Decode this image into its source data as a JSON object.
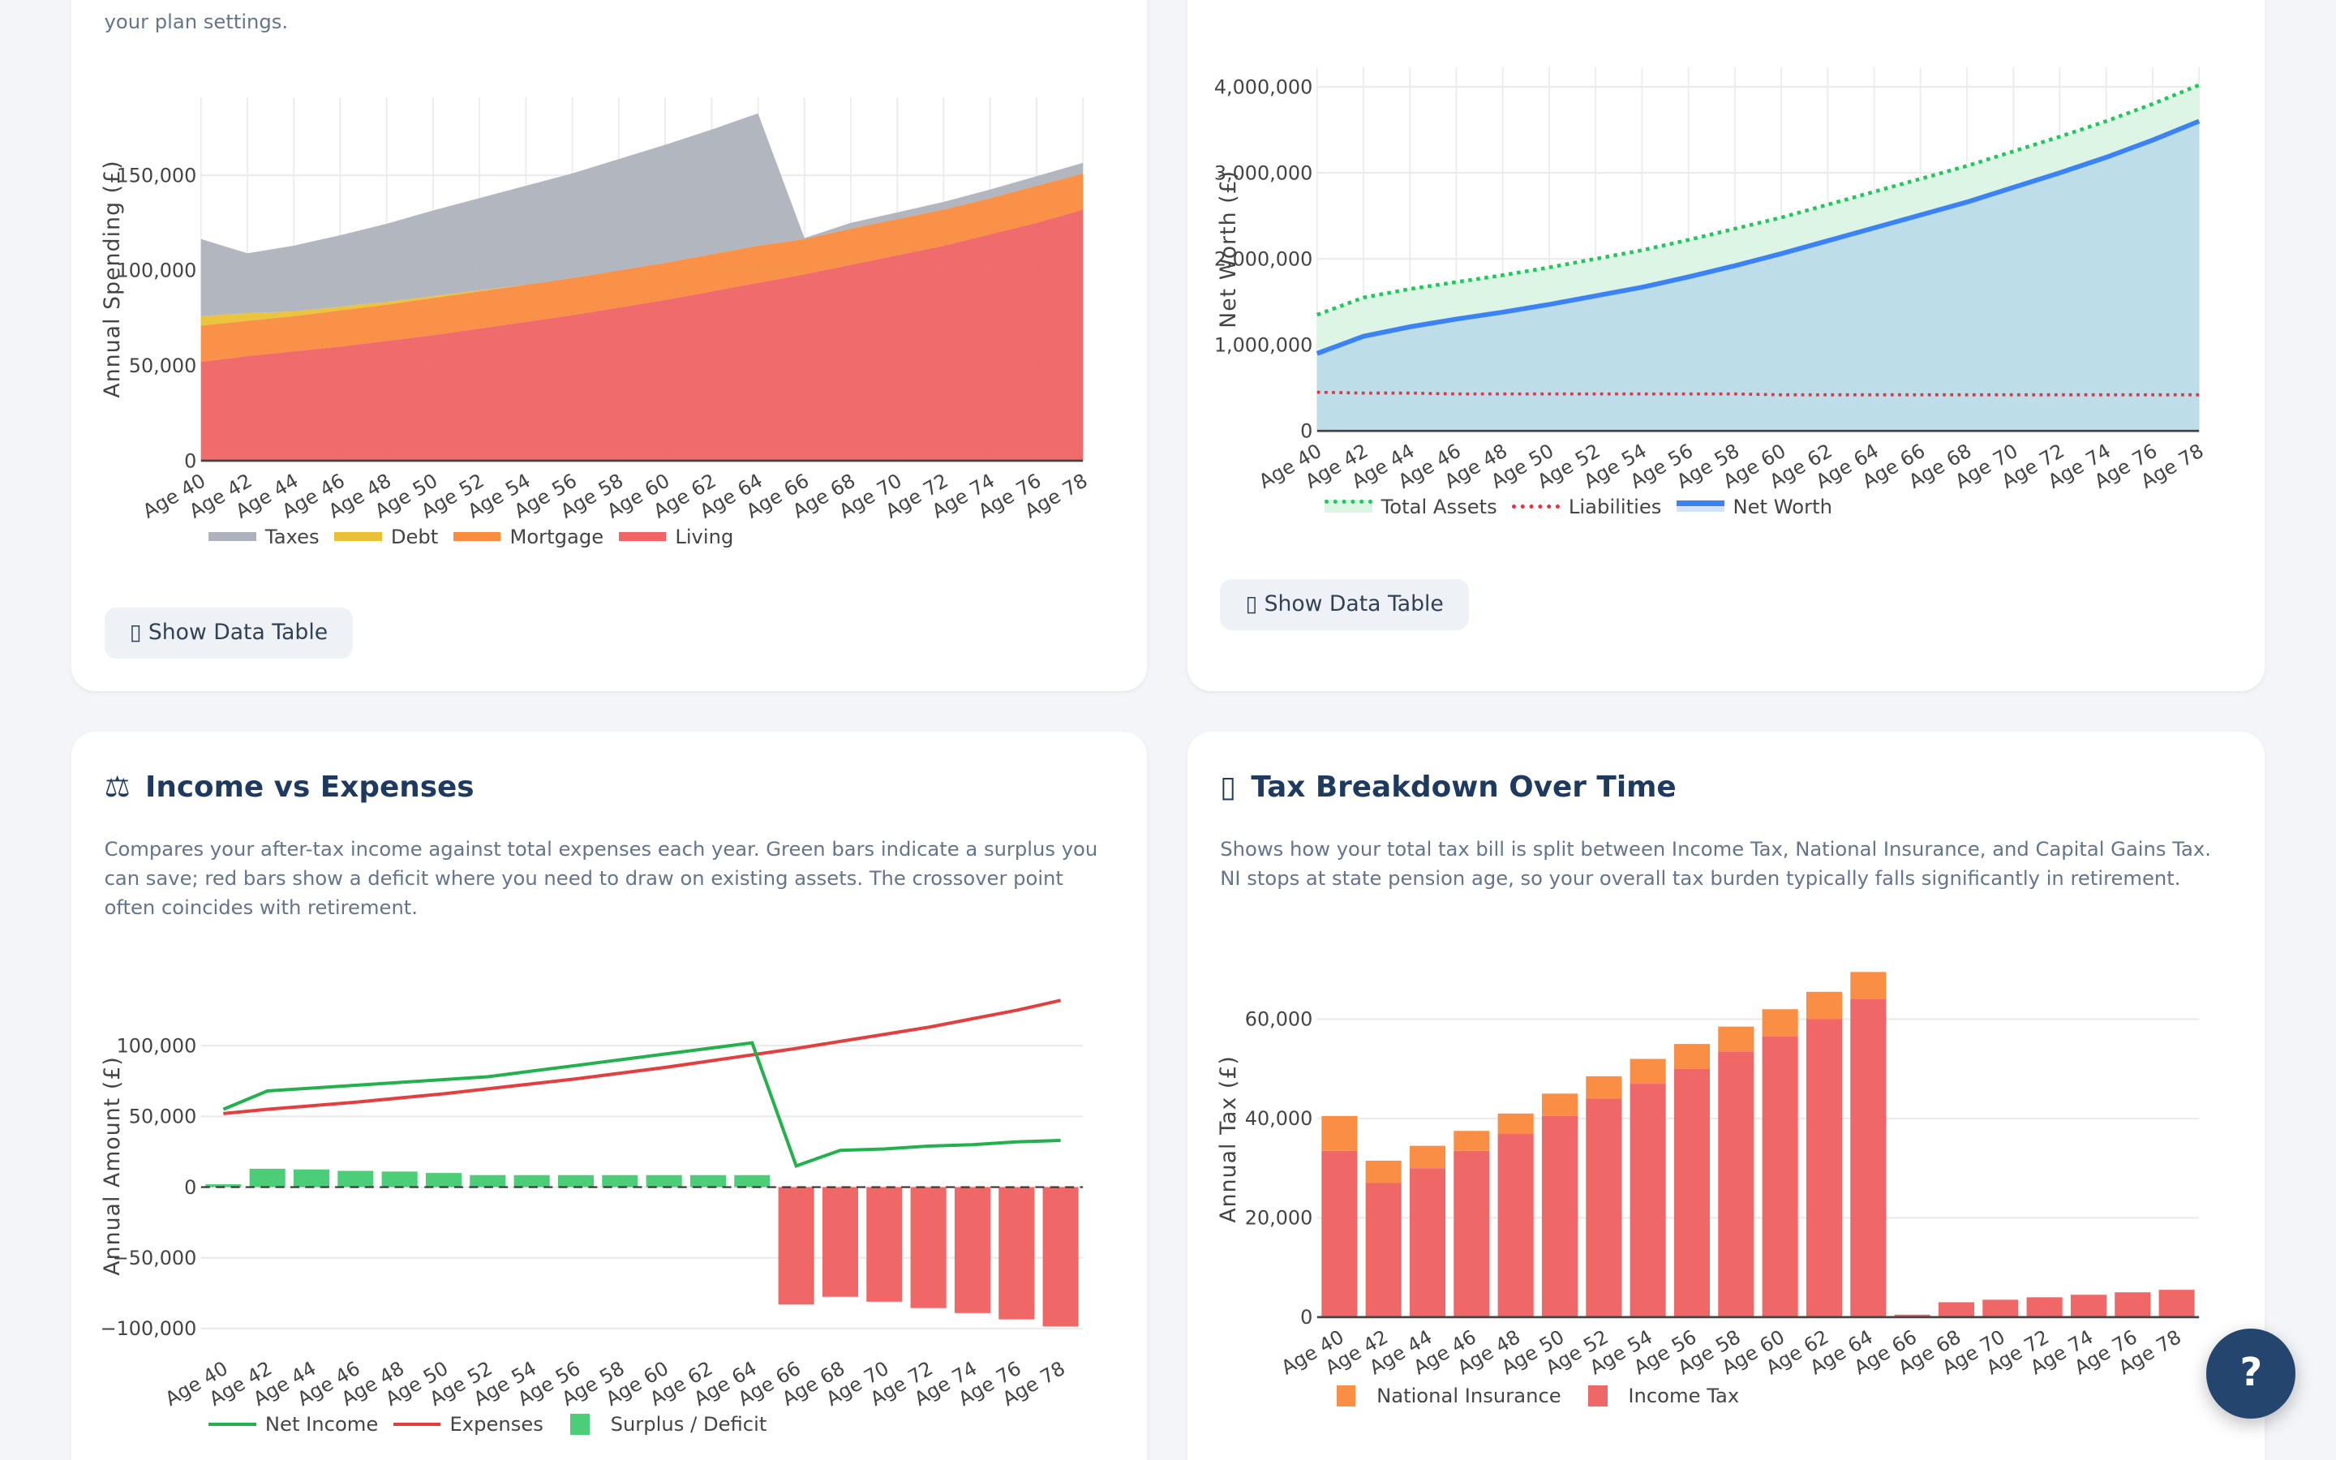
{
  "spending_card": {
    "description_tail": "your plan settings.",
    "button_icon": "table-icon",
    "button_label": "Show Data Table"
  },
  "networth_card": {
    "button_icon": "table-icon",
    "button_label": "Show Data Table"
  },
  "income_card": {
    "icon": "⚖",
    "title": "Income vs Expenses",
    "description": "Compares your after-tax income against total expenses each year. Green bars indicate a surplus you can save; red bars show a deficit where you need to draw on existing assets. The crossover point often coincides with retirement."
  },
  "tax_card": {
    "icon": "▯",
    "title": "Tax Breakdown Over Time",
    "description": "Shows how your total tax bill is split between Income Tax, National Insurance, and Capital Gains Tax. NI stops at state pension age, so your overall tax burden typically falls significantly in retirement."
  },
  "help_button": {
    "label": "?"
  },
  "chart_data": [
    {
      "type": "area",
      "stacked": true,
      "ylabel": "Annual Spending (£)",
      "ylim": [
        0,
        191000
      ],
      "yticks": [
        "0",
        "50,000",
        "100,000",
        "150,000"
      ],
      "ytick_values": [
        0,
        50000,
        100000,
        150000
      ],
      "grid": true,
      "legend": "bottom",
      "categories": [
        "Age 40",
        "Age 42",
        "Age 44",
        "Age 46",
        "Age 48",
        "Age 50",
        "Age 52",
        "Age 54",
        "Age 56",
        "Age 58",
        "Age 60",
        "Age 62",
        "Age 64",
        "Age 66",
        "Age 68",
        "Age 70",
        "Age 72",
        "Age 74",
        "Age 76",
        "Age 78"
      ],
      "series": [
        {
          "name": "Living",
          "color": "#ef6464",
          "values": [
            52000,
            55000,
            57500,
            60000,
            63000,
            66000,
            69500,
            73000,
            76500,
            80500,
            84500,
            89000,
            93500,
            98000,
            103000,
            108000,
            113000,
            119000,
            125000,
            132000
          ]
        },
        {
          "name": "Mortgage",
          "color": "#f98c3e",
          "values": [
            19000,
            18500,
            18500,
            19000,
            19000,
            19500,
            19500,
            19500,
            19500,
            19500,
            19500,
            19500,
            19500,
            18500,
            19000,
            19000,
            19000,
            19000,
            19500,
            19000
          ]
        },
        {
          "name": "Debt",
          "color": "#eac134",
          "values": [
            5000,
            4000,
            2500,
            2000,
            1500,
            1000,
            500,
            0,
            0,
            0,
            0,
            0,
            0,
            0,
            0,
            0,
            0,
            0,
            0,
            0
          ]
        },
        {
          "name": "Taxes",
          "color": "#aeb2bc",
          "values": [
            40500,
            31500,
            34500,
            37500,
            41000,
            45000,
            48500,
            52000,
            55000,
            58500,
            62000,
            65500,
            69500,
            500,
            3000,
            3500,
            4000,
            4500,
            5000,
            5500
          ]
        }
      ],
      "legend_order": [
        "Taxes",
        "Debt",
        "Mortgage",
        "Living"
      ]
    },
    {
      "type": "line",
      "ylabel": "Net Worth (£)",
      "ylim": [
        0,
        4225000
      ],
      "yticks": [
        "0",
        "1,000,000",
        "2,000,000",
        "3,000,000",
        "4,000,000"
      ],
      "ytick_values": [
        0,
        1000000,
        2000000,
        3000000,
        4000000
      ],
      "grid": true,
      "legend": "bottom",
      "categories": [
        "Age 40",
        "Age 42",
        "Age 44",
        "Age 46",
        "Age 48",
        "Age 50",
        "Age 52",
        "Age 54",
        "Age 56",
        "Age 58",
        "Age 60",
        "Age 62",
        "Age 64",
        "Age 66",
        "Age 68",
        "Age 70",
        "Age 72",
        "Age 74",
        "Age 76",
        "Age 78"
      ],
      "series": [
        {
          "name": "Total Assets",
          "color": "#22c55e",
          "fill": "#dcf5e4",
          "style": "dotted",
          "values": [
            1350000,
            1550000,
            1650000,
            1730000,
            1810000,
            1900000,
            2000000,
            2100000,
            2220000,
            2350000,
            2480000,
            2630000,
            2780000,
            2930000,
            3080000,
            3250000,
            3420000,
            3600000,
            3800000,
            4020000
          ]
        },
        {
          "name": "Liabilities",
          "color": "#dc3545",
          "style": "dotted",
          "values": [
            450000,
            440000,
            440000,
            430000,
            430000,
            430000,
            430000,
            430000,
            430000,
            430000,
            420000,
            420000,
            420000,
            420000,
            420000,
            420000,
            420000,
            420000,
            420000,
            420000
          ]
        },
        {
          "name": "Net Worth",
          "color": "#3b82f6",
          "fill": "#bddde9",
          "style": "solid",
          "values": [
            900000,
            1100000,
            1210000,
            1300000,
            1380000,
            1470000,
            1570000,
            1670000,
            1790000,
            1920000,
            2060000,
            2210000,
            2360000,
            2510000,
            2660000,
            2830000,
            3000000,
            3180000,
            3380000,
            3600000
          ]
        }
      ]
    },
    {
      "type": "bar",
      "ylabel": "Annual Amount (£)",
      "ylim": [
        -114000,
        144000
      ],
      "yticks": [
        "−100,000",
        "−50,000",
        "0",
        "50,000",
        "100,000"
      ],
      "ytick_values": [
        -100000,
        -50000,
        0,
        50000,
        100000
      ],
      "grid": true,
      "legend": "bottom",
      "categories": [
        "Age 40",
        "Age 42",
        "Age 44",
        "Age 46",
        "Age 48",
        "Age 50",
        "Age 52",
        "Age 54",
        "Age 56",
        "Age 58",
        "Age 60",
        "Age 62",
        "Age 64",
        "Age 66",
        "Age 68",
        "Age 70",
        "Age 72",
        "Age 74",
        "Age 76",
        "Age 78"
      ],
      "series": [
        {
          "name": "Net Income",
          "type": "line",
          "color": "#22b14c",
          "values": [
            55000,
            68000,
            70000,
            72000,
            74000,
            76000,
            78000,
            82000,
            86000,
            90000,
            94000,
            98000,
            102000,
            15000,
            26000,
            27000,
            29000,
            30000,
            32000,
            33000
          ]
        },
        {
          "name": "Expenses",
          "type": "line",
          "color": "#e53e3e",
          "values": [
            52000,
            55000,
            57500,
            60000,
            63000,
            66000,
            69500,
            73000,
            76500,
            80500,
            84500,
            89000,
            93500,
            98000,
            103000,
            108000,
            113000,
            119000,
            125000,
            132000
          ]
        },
        {
          "name": "Surplus / Deficit",
          "type": "bar",
          "color": "#4ccd78",
          "negative_color": "#f06767",
          "values": [
            2000,
            13000,
            12500,
            11500,
            11000,
            10000,
            8500,
            8500,
            8500,
            8500,
            8500,
            8500,
            8500,
            -83000,
            -77500,
            -81000,
            -85500,
            -89000,
            -93500,
            -98500
          ]
        }
      ]
    },
    {
      "type": "bar",
      "stacked": true,
      "ylabel": "Annual Tax (£)",
      "ylim": [
        0,
        71700
      ],
      "yticks": [
        "0",
        "20,000",
        "40,000",
        "60,000"
      ],
      "ytick_values": [
        0,
        20000,
        40000,
        60000
      ],
      "grid": true,
      "legend": "bottom",
      "categories": [
        "Age 40",
        "Age 42",
        "Age 44",
        "Age 46",
        "Age 48",
        "Age 50",
        "Age 52",
        "Age 54",
        "Age 56",
        "Age 58",
        "Age 60",
        "Age 62",
        "Age 64",
        "Age 66",
        "Age 68",
        "Age 70",
        "Age 72",
        "Age 74",
        "Age 76",
        "Age 78"
      ],
      "series": [
        {
          "name": "Income Tax",
          "color": "#f06767",
          "values": [
            33500,
            27000,
            30000,
            33500,
            37000,
            40500,
            44000,
            47000,
            50000,
            53500,
            56500,
            60000,
            64000,
            500,
            3000,
            3500,
            4000,
            4500,
            5000,
            5500
          ]
        },
        {
          "name": "National Insurance",
          "color": "#fa8e44",
          "values": [
            7000,
            4500,
            4500,
            4000,
            4000,
            4500,
            4500,
            5000,
            5000,
            5000,
            5500,
            5500,
            5500,
            0,
            0,
            0,
            0,
            0,
            0,
            0
          ]
        }
      ],
      "legend_order": [
        "National Insurance",
        "Income Tax"
      ]
    }
  ]
}
